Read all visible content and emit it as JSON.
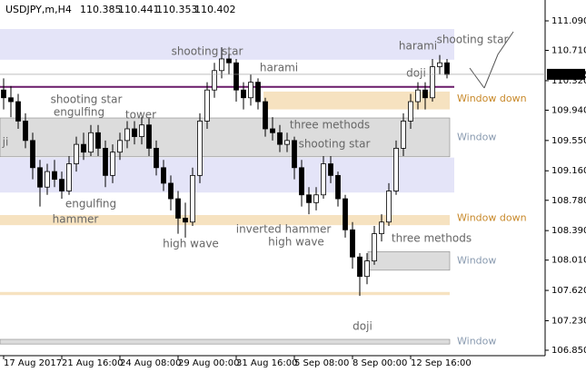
{
  "chart_data": {
    "type": "candlestick",
    "symbol": "USDJPY,m,H4",
    "header_ohlc": [
      110.385,
      110.441,
      110.353,
      110.402
    ],
    "last": 110.402,
    "ylim": [
      106.85,
      111.09
    ],
    "yticks": [
      {
        "value": 111.09,
        "label": "111.090"
      },
      {
        "value": 110.71,
        "label": "110.710"
      },
      {
        "value": 110.32,
        "label": "110.320"
      },
      {
        "value": 109.94,
        "label": "109.940"
      },
      {
        "value": 109.55,
        "label": "109.550"
      },
      {
        "value": 109.16,
        "label": "109.160"
      },
      {
        "value": 108.78,
        "label": "108.780"
      },
      {
        "value": 108.39,
        "label": "108.390"
      },
      {
        "value": 108.01,
        "label": "108.010"
      },
      {
        "value": 107.62,
        "label": "107.620"
      },
      {
        "value": 107.23,
        "label": "107.230"
      },
      {
        "value": 106.85,
        "label": "106.850"
      }
    ],
    "x_labels": [
      "17 Aug 2017",
      "21 Aug 16:00",
      "24 Aug 08:00",
      "29 Aug 00:00",
      "31 Aug 16:00",
      "5 Sep 08:00",
      "8 Sep 00:00",
      "12 Sep 16:00"
    ],
    "candles": [
      [
        110.2,
        110.35,
        109.95,
        110.1
      ],
      [
        110.1,
        110.25,
        109.85,
        110.05
      ],
      [
        110.05,
        110.15,
        109.7,
        109.8
      ],
      [
        109.8,
        109.9,
        109.45,
        109.55
      ],
      [
        109.55,
        109.65,
        109.05,
        109.2
      ],
      [
        109.2,
        109.3,
        108.7,
        108.95
      ],
      [
        108.95,
        109.25,
        108.85,
        109.15
      ],
      [
        109.15,
        109.3,
        108.95,
        109.05
      ],
      [
        109.05,
        109.15,
        108.8,
        108.9
      ],
      [
        108.9,
        109.35,
        108.85,
        109.25
      ],
      [
        109.25,
        109.6,
        109.15,
        109.5
      ],
      [
        109.5,
        109.65,
        109.3,
        109.4
      ],
      [
        109.4,
        109.75,
        109.35,
        109.65
      ],
      [
        109.65,
        109.75,
        109.35,
        109.45
      ],
      [
        109.45,
        109.55,
        108.95,
        109.1
      ],
      [
        109.1,
        109.5,
        109.0,
        109.4
      ],
      [
        109.4,
        109.65,
        109.3,
        109.55
      ],
      [
        109.55,
        109.8,
        109.45,
        109.7
      ],
      [
        109.7,
        109.8,
        109.5,
        109.6
      ],
      [
        109.6,
        109.85,
        109.5,
        109.75
      ],
      [
        109.75,
        109.85,
        109.35,
        109.45
      ],
      [
        109.45,
        109.55,
        109.1,
        109.2
      ],
      [
        109.2,
        109.3,
        108.9,
        109.0
      ],
      [
        109.0,
        109.1,
        108.65,
        108.8
      ],
      [
        108.8,
        108.9,
        108.35,
        108.55
      ],
      [
        108.55,
        108.75,
        108.3,
        108.5
      ],
      [
        108.5,
        109.2,
        108.45,
        109.1
      ],
      [
        109.1,
        109.9,
        109.0,
        109.8
      ],
      [
        109.8,
        110.3,
        109.7,
        110.2
      ],
      [
        110.2,
        110.55,
        110.1,
        110.45
      ],
      [
        110.45,
        110.75,
        110.35,
        110.6
      ],
      [
        110.6,
        110.7,
        110.4,
        110.55
      ],
      [
        110.55,
        110.6,
        110.05,
        110.2
      ],
      [
        110.2,
        110.3,
        109.95,
        110.1
      ],
      [
        110.1,
        110.4,
        110.0,
        110.3
      ],
      [
        110.3,
        110.35,
        109.95,
        110.05
      ],
      [
        110.05,
        110.1,
        109.6,
        109.7
      ],
      [
        109.7,
        109.85,
        109.55,
        109.65
      ],
      [
        109.65,
        109.75,
        109.4,
        109.5
      ],
      [
        109.5,
        109.65,
        109.4,
        109.55
      ],
      [
        109.55,
        109.6,
        109.05,
        109.2
      ],
      [
        109.2,
        109.3,
        108.7,
        108.85
      ],
      [
        108.85,
        108.95,
        108.6,
        108.75
      ],
      [
        108.75,
        108.95,
        108.65,
        108.85
      ],
      [
        108.85,
        109.35,
        108.8,
        109.25
      ],
      [
        109.25,
        109.35,
        109.0,
        109.1
      ],
      [
        109.1,
        109.15,
        108.7,
        108.8
      ],
      [
        108.8,
        108.85,
        108.3,
        108.4
      ],
      [
        108.4,
        108.5,
        107.9,
        108.05
      ],
      [
        108.05,
        108.1,
        107.55,
        107.8
      ],
      [
        107.8,
        108.1,
        107.7,
        108.0
      ],
      [
        108.0,
        108.45,
        107.95,
        108.35
      ],
      [
        108.35,
        108.6,
        108.25,
        108.5
      ],
      [
        108.5,
        109.0,
        108.45,
        108.9
      ],
      [
        108.9,
        109.55,
        108.85,
        109.45
      ],
      [
        109.45,
        109.9,
        109.35,
        109.8
      ],
      [
        109.8,
        110.15,
        109.7,
        110.05
      ],
      [
        110.05,
        110.3,
        109.95,
        110.2
      ],
      [
        110.2,
        110.3,
        109.95,
        110.1
      ],
      [
        110.1,
        110.6,
        110.05,
        110.5
      ],
      [
        110.5,
        110.65,
        110.4,
        110.55
      ],
      [
        110.55,
        110.6,
        110.35,
        110.4
      ]
    ],
    "zones": [
      {
        "from": 110.985,
        "to": 110.59,
        "color": "#e4e4f8"
      },
      {
        "from": 110.18,
        "to": 109.95,
        "color": "#f6e2c0",
        "label": "Window down",
        "label_color": "#c8892a"
      },
      {
        "from": 109.84,
        "to": 109.34,
        "color": "#dcdcdc",
        "label": "Window",
        "label_color": "#8a9bb0"
      },
      {
        "from": 109.33,
        "to": 108.88,
        "color": "#e4e4f8"
      },
      {
        "from": 108.59,
        "to": 108.46,
        "color": "#f6e2c0",
        "label": "Window down",
        "label_color": "#c8892a"
      },
      {
        "from": 108.12,
        "to": 107.88,
        "color": "#dcdcdc",
        "label": "Window",
        "label_color": "#8a9bb0"
      },
      {
        "from": 107.6,
        "to": 107.56,
        "color": "#f6e2c0"
      },
      {
        "from": 106.99,
        "to": 106.93,
        "color": "#dcdcdc",
        "label": "Window",
        "label_color": "#8a9bb0"
      }
    ],
    "level_line": {
      "value": 110.24,
      "color": "#6a1b6a"
    },
    "patterns": [
      "shooting star",
      "harami",
      "shooting star",
      "engulfing",
      "tower",
      "three methods",
      "shooting star",
      "engulfing",
      "hammer",
      "high wave",
      "inverted hammer",
      "high wave",
      "harami",
      "shooting star",
      "doji",
      "doji",
      "three methods",
      "ji"
    ]
  }
}
